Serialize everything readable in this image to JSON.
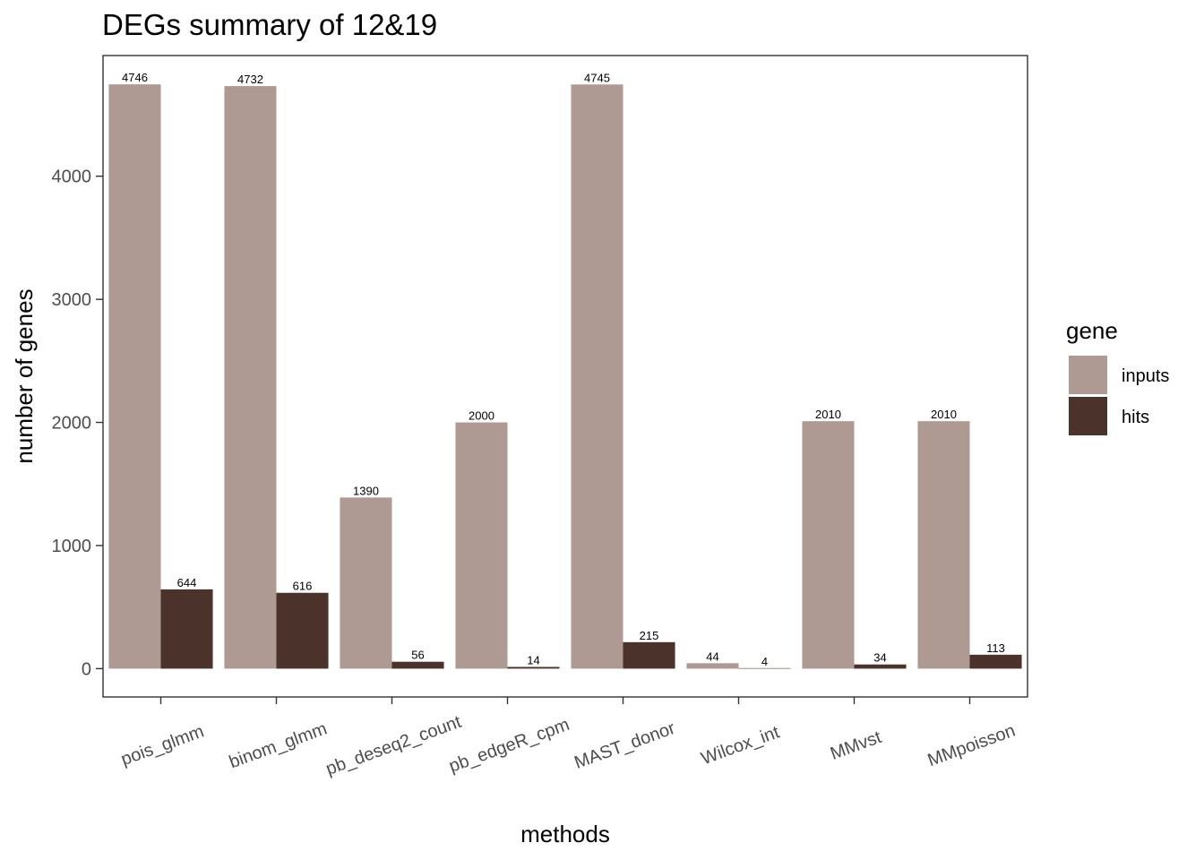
{
  "chart_data": {
    "type": "bar",
    "title": "DEGs summary of  12&19",
    "xlabel": "methods",
    "ylabel": "number of genes",
    "categories": [
      "pois_glmm",
      "binom_glmm",
      "pb_deseq2_count",
      "pb_edgeR_cpm",
      "MAST_donor",
      "Wilcox_int",
      "MMvst",
      "MMpoisson"
    ],
    "series": [
      {
        "name": "inputs",
        "color": "#AE9A92",
        "values": [
          4746,
          4732,
          1390,
          2000,
          4745,
          44,
          2010,
          2010
        ]
      },
      {
        "name": "hits",
        "color": "#4B322A",
        "values": [
          644,
          616,
          56,
          14,
          215,
          4,
          34,
          113
        ]
      }
    ],
    "ylim": [
      -230,
      4980
    ],
    "yticks": [
      0,
      1000,
      2000,
      3000,
      4000
    ],
    "grid": false,
    "legend": {
      "title": "gene",
      "position": "right"
    }
  }
}
